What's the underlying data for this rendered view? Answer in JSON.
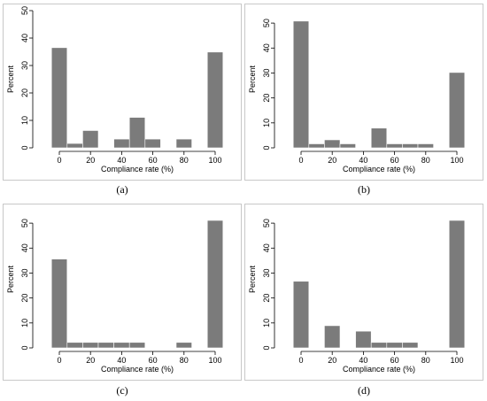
{
  "chart_data": [
    {
      "type": "bar",
      "caption": "(a)",
      "xlabel": "Compliance rate (%)",
      "ylabel": "Percent",
      "xlim": [
        -12.5,
        112.5
      ],
      "ylim": [
        0,
        50
      ],
      "xticks": [
        0,
        20,
        40,
        60,
        80,
        100
      ],
      "yticks": [
        0,
        10,
        20,
        30,
        40,
        50
      ],
      "bin_width": 10,
      "bins": [
        {
          "center": 0,
          "value": 36.5
        },
        {
          "center": 10,
          "value": 1.6
        },
        {
          "center": 20,
          "value": 6.3
        },
        {
          "center": 40,
          "value": 3.2
        },
        {
          "center": 50,
          "value": 11.1
        },
        {
          "center": 60,
          "value": 3.2
        },
        {
          "center": 80,
          "value": 3.2
        },
        {
          "center": 100,
          "value": 34.9
        }
      ]
    },
    {
      "type": "bar",
      "caption": "(b)",
      "xlabel": "Compliance rate (%)",
      "ylabel": "Percent",
      "xlim": [
        -12.5,
        112.5
      ],
      "ylim": [
        0,
        55
      ],
      "xticks": [
        0,
        20,
        40,
        60,
        80,
        100
      ],
      "yticks": [
        0,
        10,
        20,
        30,
        40,
        50
      ],
      "bin_width": 10,
      "bins": [
        {
          "center": 0,
          "value": 50.8
        },
        {
          "center": 10,
          "value": 1.6
        },
        {
          "center": 20,
          "value": 3.2
        },
        {
          "center": 30,
          "value": 1.6
        },
        {
          "center": 50,
          "value": 7.9
        },
        {
          "center": 60,
          "value": 1.6
        },
        {
          "center": 70,
          "value": 1.6
        },
        {
          "center": 80,
          "value": 1.6
        },
        {
          "center": 100,
          "value": 30.2
        }
      ]
    },
    {
      "type": "bar",
      "caption": "(c)",
      "xlabel": "Compliance rate (%)",
      "ylabel": "Percent",
      "xlim": [
        -12.5,
        112.5
      ],
      "ylim": [
        0,
        55
      ],
      "xticks": [
        0,
        20,
        40,
        60,
        80,
        100
      ],
      "yticks": [
        0,
        10,
        20,
        30,
        40,
        50
      ],
      "bin_width": 10,
      "bins": [
        {
          "center": 0,
          "value": 35.6
        },
        {
          "center": 10,
          "value": 2.2
        },
        {
          "center": 20,
          "value": 2.2
        },
        {
          "center": 30,
          "value": 2.2
        },
        {
          "center": 40,
          "value": 2.2
        },
        {
          "center": 50,
          "value": 2.2
        },
        {
          "center": 80,
          "value": 2.2
        },
        {
          "center": 100,
          "value": 51.1
        }
      ]
    },
    {
      "type": "bar",
      "caption": "(d)",
      "xlabel": "Compliance rate (%)",
      "ylabel": "Percent",
      "xlim": [
        -12.5,
        112.5
      ],
      "ylim": [
        0,
        55
      ],
      "xticks": [
        0,
        20,
        40,
        60,
        80,
        100
      ],
      "yticks": [
        0,
        10,
        20,
        30,
        40,
        50
      ],
      "bin_width": 10,
      "bins": [
        {
          "center": 0,
          "value": 26.7
        },
        {
          "center": 20,
          "value": 8.9
        },
        {
          "center": 40,
          "value": 6.7
        },
        {
          "center": 50,
          "value": 2.2
        },
        {
          "center": 60,
          "value": 2.2
        },
        {
          "center": 70,
          "value": 2.2
        },
        {
          "center": 100,
          "value": 51.1
        }
      ]
    }
  ]
}
